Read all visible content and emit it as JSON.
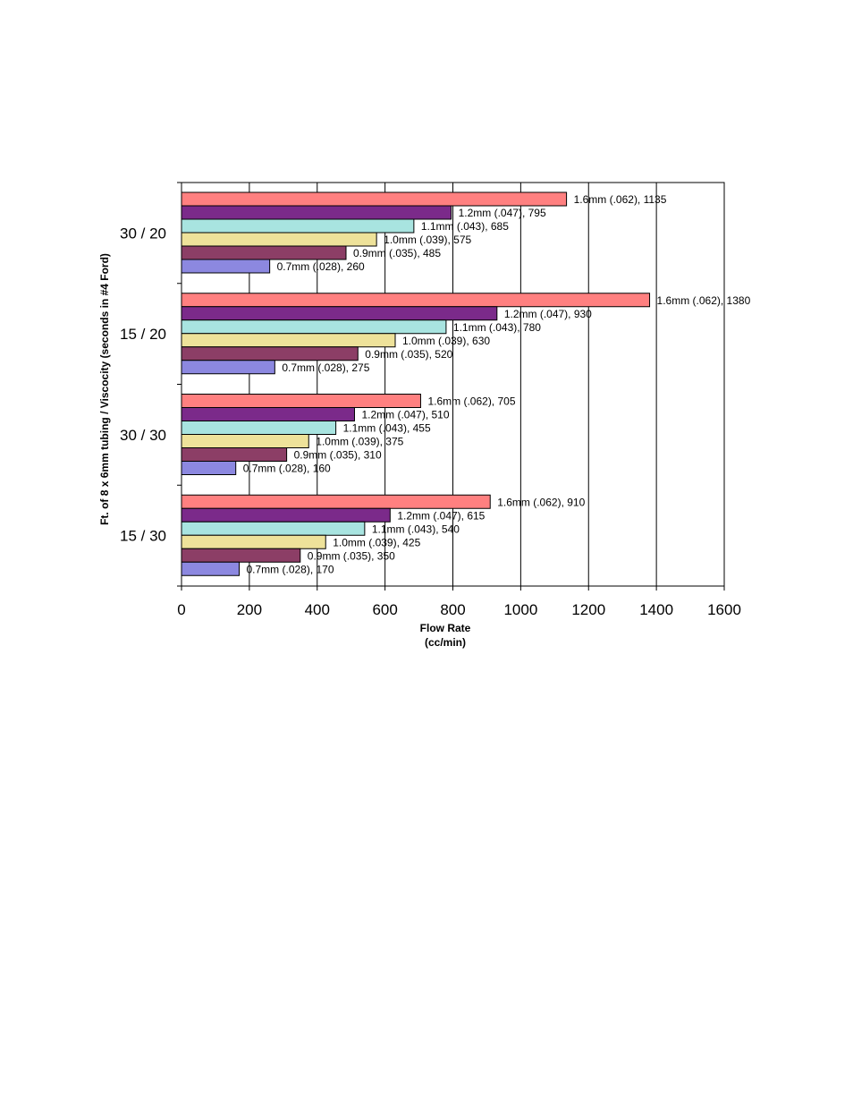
{
  "chart_data": {
    "type": "bar",
    "orientation": "horizontal",
    "categories": [
      "30 / 20",
      "15 / 20",
      "30 / 30",
      "15 / 30"
    ],
    "series": [
      {
        "name": "1.6mm (.062)",
        "color": "#ff8080",
        "values": [
          1135,
          1380,
          705,
          910
        ]
      },
      {
        "name": "1.2mm (.047)",
        "color": "#7b2a8a",
        "values": [
          795,
          930,
          510,
          615
        ]
      },
      {
        "name": "1.1mm (.043)",
        "color": "#a8e4e0",
        "values": [
          685,
          780,
          455,
          540
        ]
      },
      {
        "name": "1.0mm (.039)",
        "color": "#eee29a",
        "values": [
          575,
          630,
          375,
          425
        ]
      },
      {
        "name": "0.9mm (.035)",
        "color": "#8c3e66",
        "values": [
          485,
          520,
          310,
          350
        ]
      },
      {
        "name": "0.7mm (.028)",
        "color": "#8c88e0",
        "values": [
          260,
          275,
          160,
          170
        ]
      }
    ],
    "data_labels": [
      [
        "1.6mm (.062), 1135",
        "1.2mm (.047), 795",
        "1.1mm (.043), 685",
        "1.0mm (.039), 575",
        "0.9mm (.035), 485",
        "0.7mm (.028), 260"
      ],
      [
        "1.6mm (.062), 1380",
        "1.2mm (.047), 930",
        "1.1mm (.043), 780",
        "1.0mm (.039), 630",
        "0.9mm (.035), 520",
        "0.7mm (.028), 275"
      ],
      [
        "1.6mm (.062), 705",
        "1.2mm (.047), 510",
        "1.1mm (.043), 455",
        "1.0mm (.039), 375",
        "0.9mm (.035), 310",
        "0.7mm (.028), 160"
      ],
      [
        "1.6mm (.062), 910",
        "1.2mm (.047), 615",
        "1.1mm (.043), 540",
        "1.0mm (.039), 425",
        "0.9mm (.035), 350",
        "0.7mm (.028), 170"
      ]
    ],
    "xticks": [
      0,
      200,
      400,
      600,
      800,
      1000,
      1200,
      1400,
      1600
    ],
    "xlim": [
      0,
      1600
    ],
    "xlabel_line1": "Flow Rate",
    "xlabel_line2": "(cc/min)",
    "ylabel": "Ft. of 8 x 6mm tubing / Viscocity (seconds in #4 Ford)",
    "grid": "vertical",
    "legend": "none"
  }
}
